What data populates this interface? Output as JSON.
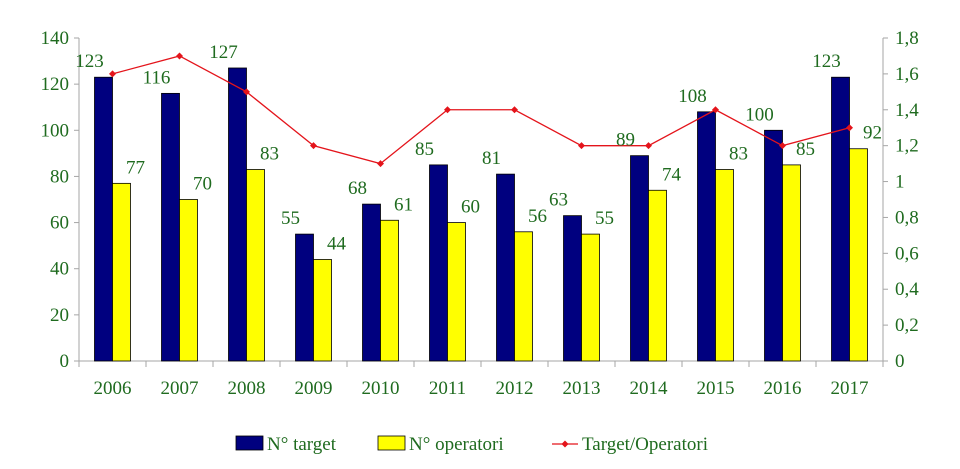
{
  "chart_data": {
    "type": "bar",
    "categories": [
      "2006",
      "2007",
      "2008",
      "2009",
      "2010",
      "2011",
      "2012",
      "2013",
      "2014",
      "2015",
      "2016",
      "2017"
    ],
    "series": [
      {
        "name": "N° target",
        "type": "bar",
        "axis": "left",
        "color": "#00007f",
        "values": [
          123,
          116,
          127,
          55,
          68,
          85,
          81,
          63,
          89,
          108,
          100,
          123
        ]
      },
      {
        "name": "N° operatori",
        "type": "bar",
        "axis": "left",
        "color": "#ffff00",
        "values": [
          77,
          70,
          83,
          44,
          61,
          60,
          56,
          55,
          74,
          83,
          85,
          92
        ]
      },
      {
        "name": "Target/Operatori",
        "type": "line",
        "axis": "right",
        "color": "#e4141b",
        "values": [
          1.6,
          1.7,
          1.5,
          1.2,
          1.1,
          1.4,
          1.4,
          1.2,
          1.2,
          1.4,
          1.2,
          1.3
        ]
      }
    ],
    "y_left": {
      "lim": [
        0,
        140
      ],
      "ticks": [
        "0",
        "20",
        "40",
        "60",
        "80",
        "100",
        "120",
        "140"
      ]
    },
    "y_right": {
      "lim": [
        0,
        1.8
      ],
      "ticks": [
        "0",
        "0,2",
        "0,4",
        "0,6",
        "0,8",
        "1",
        "1,2",
        "1,4",
        "1,6",
        "1,8"
      ]
    },
    "grid": false,
    "legend": "bottom",
    "title": "",
    "xlabel": "",
    "ylabel": ""
  },
  "colors": {
    "text": "#1f6b1f",
    "axis": "#a6a6a6",
    "bar_outline": "#000000"
  }
}
